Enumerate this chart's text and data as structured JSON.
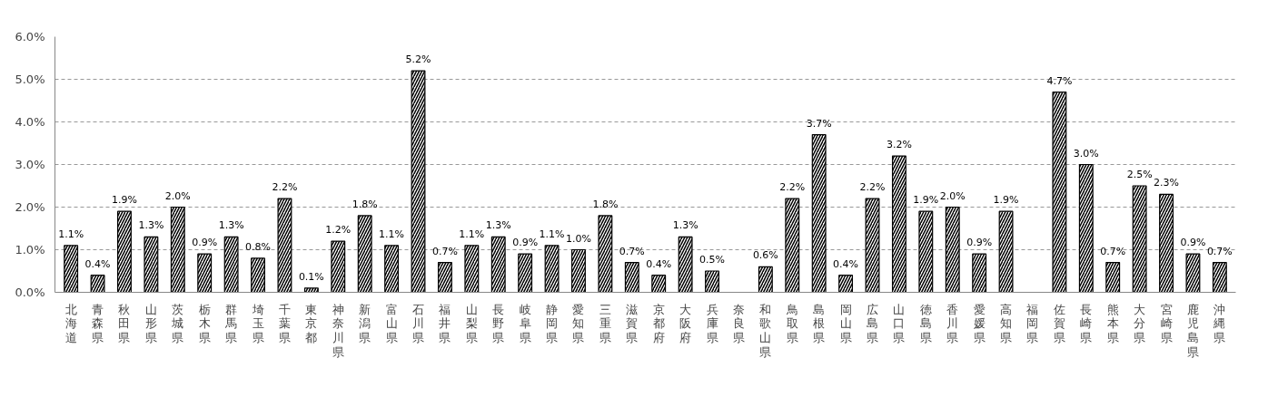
{
  "chart_data": {
    "type": "bar",
    "categories": [
      "北海道",
      "青森県",
      "秋田県",
      "山形県",
      "茨城県",
      "栃木県",
      "群馬県",
      "埼玉県",
      "千葉県",
      "東京都",
      "神奈川県",
      "新潟県",
      "富山県",
      "石川県",
      "福井県",
      "山梨県",
      "長野県",
      "岐阜県",
      "静岡県",
      "愛知県",
      "三重県",
      "滋賀県",
      "京都府",
      "大阪府",
      "兵庫県",
      "奈良県",
      "和歌山県",
      "鳥取県",
      "島根県",
      "岡山県",
      "広島県",
      "山口県",
      "徳島県",
      "香川県",
      "愛媛県",
      "高知県",
      "福岡県",
      "佐賀県",
      "長崎県",
      "熊本県",
      "大分県",
      "宮崎県",
      "鹿児島県",
      "沖縄県"
    ],
    "values": [
      1.1,
      0.4,
      1.9,
      1.3,
      2.0,
      0.9,
      1.3,
      0.8,
      2.2,
      0.1,
      1.2,
      1.8,
      1.1,
      5.2,
      0.7,
      1.1,
      1.3,
      0.9,
      1.1,
      1.0,
      1.8,
      0.7,
      0.4,
      1.3,
      0.5,
      null,
      0.6,
      2.2,
      3.7,
      0.4,
      2.2,
      3.2,
      1.9,
      2.0,
      0.9,
      1.9,
      null,
      4.7,
      3.0,
      0.7,
      2.5,
      2.3,
      0.9,
      0.7
    ],
    "value_labels": [
      "1.1%",
      "0.4%",
      "1.9%",
      "1.3%",
      "2.0%",
      "0.9%",
      "1.3%",
      "0.8%",
      "2.2%",
      "0.1%",
      "1.2%",
      "1.8%",
      "1.1%",
      "5.2%",
      "0.7%",
      "1.1%",
      "1.3%",
      "0.9%",
      "1.1%",
      "1.0%",
      "1.8%",
      "0.7%",
      "0.4%",
      "1.3%",
      "0.5%",
      null,
      "0.6%",
      "2.2%",
      "3.7%",
      "0.4%",
      "2.2%",
      "3.2%",
      "1.9%",
      "2.0%",
      "0.9%",
      "1.9%",
      null,
      "4.7%",
      "3.0%",
      "0.7%",
      "2.5%",
      "2.3%",
      "0.9%",
      "0.7%"
    ],
    "color": "#000000",
    "ylim": [
      0,
      6
    ],
    "yticks": [
      {
        "value": 0,
        "label": "0.0%"
      },
      {
        "value": 1,
        "label": "1.0%"
      },
      {
        "value": 2,
        "label": "2.0%"
      },
      {
        "value": 3,
        "label": "3.0%"
      },
      {
        "value": 4,
        "label": "4.0%"
      },
      {
        "value": 5,
        "label": "5.0%"
      },
      {
        "value": 6,
        "label": "6.0%"
      }
    ],
    "grid": "y"
  }
}
